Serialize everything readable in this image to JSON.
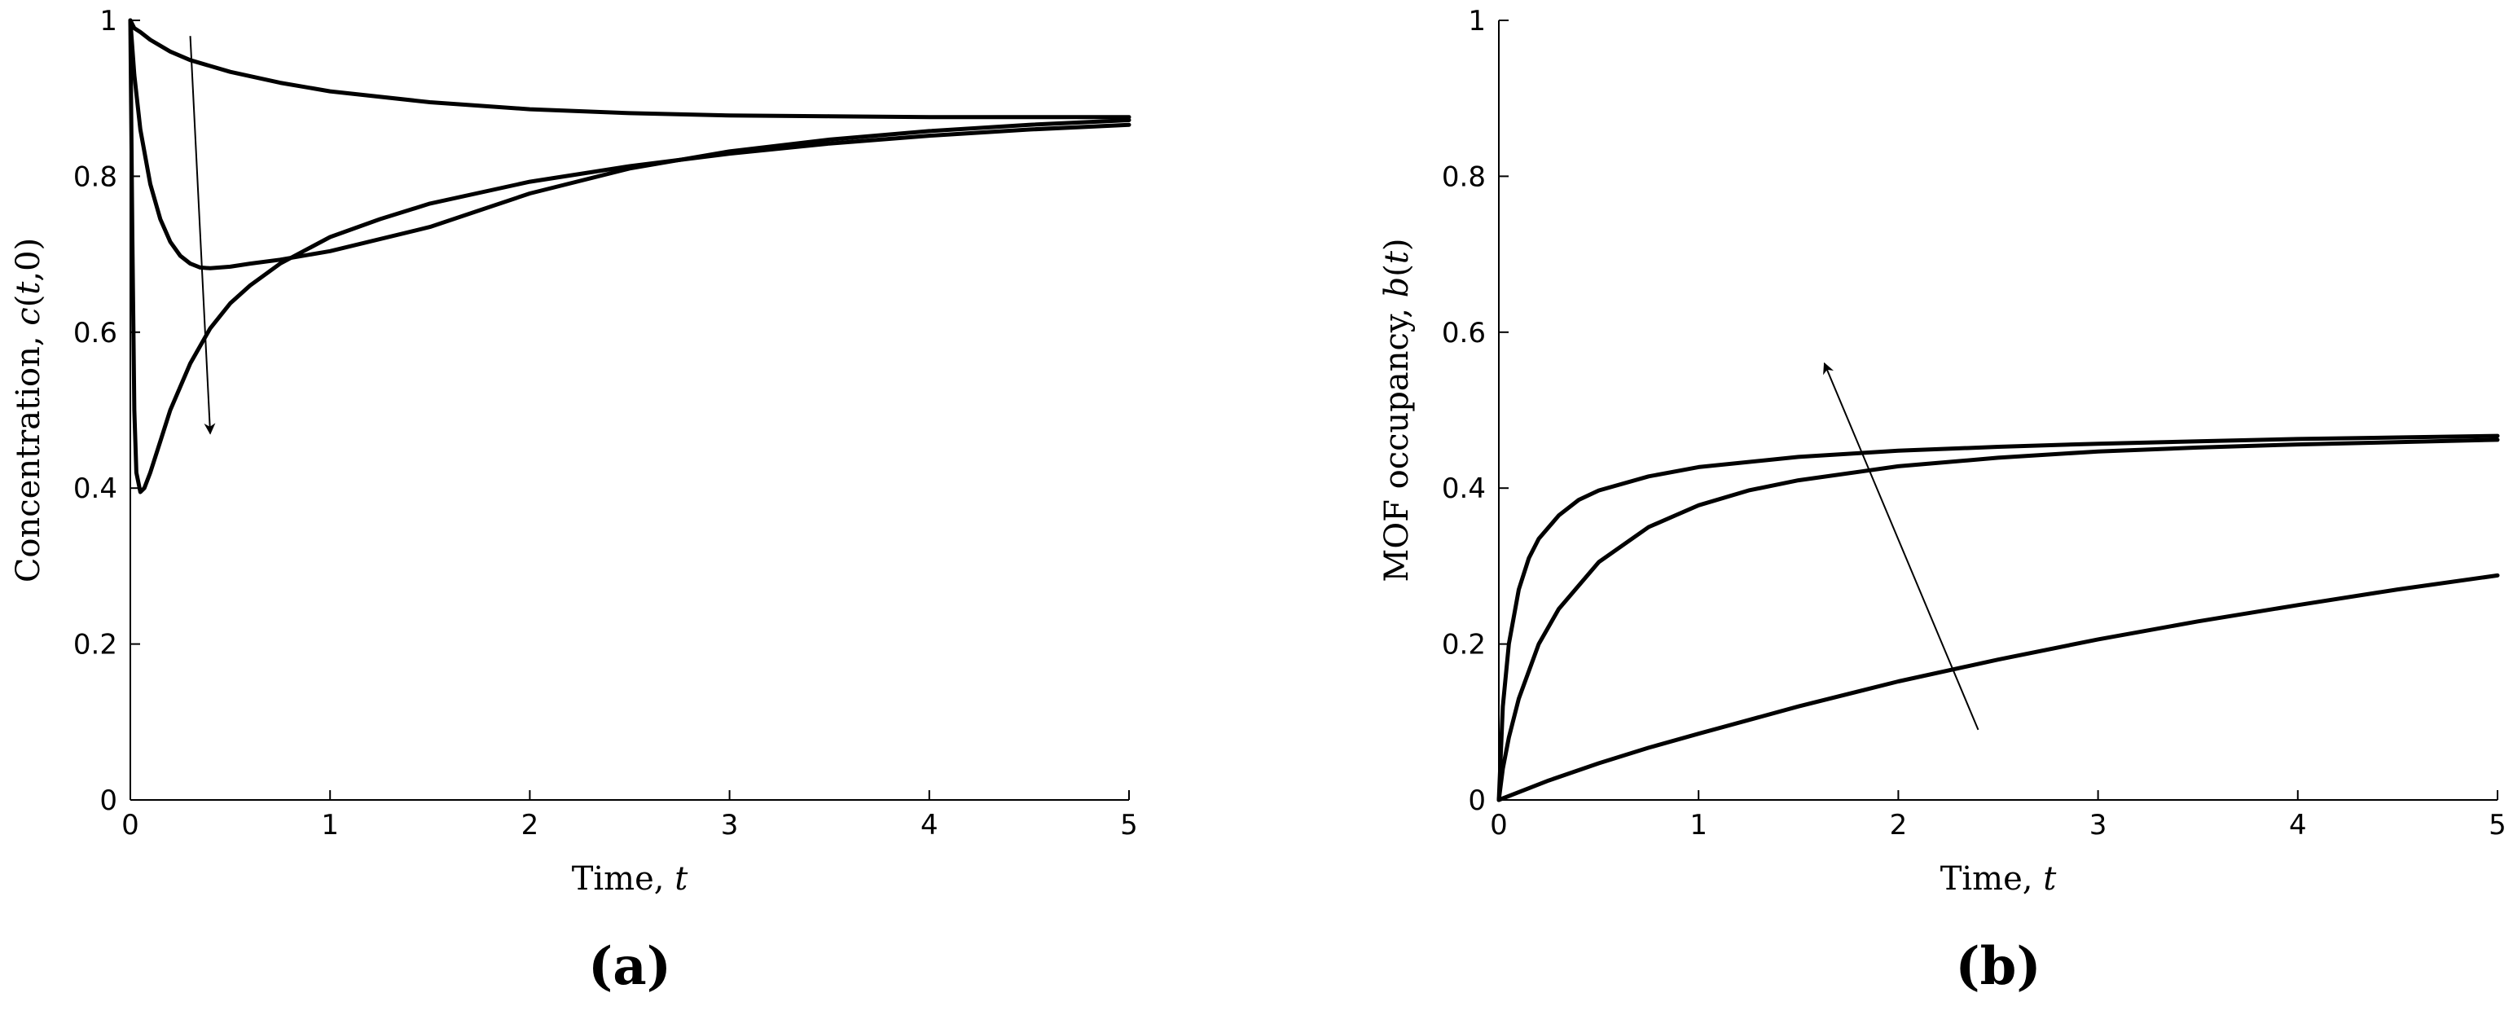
{
  "chart_data": [
    {
      "type": "line",
      "panel_label": "(a)",
      "xlabel": "Time, t",
      "ylabel": "Concentration, c(t,0)",
      "xlim": [
        0,
        5
      ],
      "ylim": [
        0,
        1
      ],
      "xticks": [
        "0",
        "1",
        "2",
        "3",
        "4",
        "5"
      ],
      "yticks": [
        "0",
        "0.2",
        "0.4",
        "0.6",
        "0.8",
        "1"
      ],
      "grid": false,
      "line_color": "#000000",
      "series": [
        {
          "x": [
            0,
            0.02,
            0.05,
            0.1,
            0.2,
            0.3,
            0.5,
            0.75,
            1,
            1.5,
            2,
            2.5,
            3,
            3.5,
            4,
            4.5,
            5
          ],
          "y": [
            1,
            0.99,
            0.985,
            0.975,
            0.96,
            0.949,
            0.934,
            0.92,
            0.909,
            0.895,
            0.886,
            0.881,
            0.878,
            0.877,
            0.876,
            0.876,
            0.876
          ]
        },
        {
          "x": [
            0,
            0.02,
            0.05,
            0.1,
            0.15,
            0.2,
            0.25,
            0.3,
            0.35,
            0.4,
            0.5,
            0.6,
            0.75,
            1,
            1.5,
            2,
            2.5,
            3,
            3.5,
            4,
            4.5,
            5
          ],
          "y": [
            1,
            0.93,
            0.86,
            0.79,
            0.745,
            0.716,
            0.698,
            0.688,
            0.683,
            0.682,
            0.684,
            0.688,
            0.693,
            0.704,
            0.735,
            0.778,
            0.81,
            0.832,
            0.847,
            0.858,
            0.866,
            0.872
          ]
        },
        {
          "x": [
            0,
            0.01,
            0.02,
            0.03,
            0.05,
            0.07,
            0.1,
            0.15,
            0.2,
            0.3,
            0.4,
            0.5,
            0.6,
            0.75,
            1,
            1.25,
            1.5,
            2,
            2.5,
            3,
            3.5,
            4,
            4.5,
            5
          ],
          "y": [
            1,
            0.72,
            0.5,
            0.42,
            0.395,
            0.4,
            0.42,
            0.46,
            0.5,
            0.56,
            0.605,
            0.637,
            0.66,
            0.688,
            0.722,
            0.745,
            0.765,
            0.793,
            0.813,
            0.829,
            0.842,
            0.852,
            0.86,
            0.866
          ]
        }
      ],
      "annotations": [
        {
          "type": "arrow",
          "from": [
            0.3,
            0.98
          ],
          "to": [
            0.4,
            0.47
          ]
        }
      ]
    },
    {
      "type": "line",
      "panel_label": "(b)",
      "xlabel": "Time, t",
      "ylabel": "MOF occupancy, b(t)",
      "xlim": [
        0,
        5
      ],
      "ylim": [
        0,
        1
      ],
      "xticks": [
        "0",
        "1",
        "2",
        "3",
        "4",
        "5"
      ],
      "yticks": [
        "0",
        "0.2",
        "0.4",
        "0.6",
        "0.8",
        "1"
      ],
      "grid": false,
      "line_color": "#000000",
      "series": [
        {
          "x": [
            0,
            0.02,
            0.05,
            0.1,
            0.15,
            0.2,
            0.3,
            0.4,
            0.5,
            0.75,
            1,
            1.5,
            2,
            2.5,
            3,
            3.5,
            4,
            4.5,
            5
          ],
          "y": [
            0,
            0.12,
            0.2,
            0.27,
            0.31,
            0.335,
            0.365,
            0.385,
            0.397,
            0.415,
            0.427,
            0.44,
            0.448,
            0.453,
            0.457,
            0.46,
            0.463,
            0.465,
            0.467
          ]
        },
        {
          "x": [
            0,
            0.02,
            0.05,
            0.1,
            0.2,
            0.3,
            0.5,
            0.75,
            1,
            1.25,
            1.5,
            2,
            2.5,
            3,
            3.5,
            4,
            4.5,
            5
          ],
          "y": [
            0,
            0.04,
            0.08,
            0.13,
            0.2,
            0.245,
            0.305,
            0.35,
            0.378,
            0.397,
            0.41,
            0.428,
            0.439,
            0.447,
            0.452,
            0.456,
            0.459,
            0.462
          ]
        },
        {
          "x": [
            0,
            0.25,
            0.5,
            0.75,
            1,
            1.5,
            2,
            2.5,
            3,
            3.5,
            4,
            4.5,
            5
          ],
          "y": [
            0,
            0.025,
            0.047,
            0.067,
            0.085,
            0.12,
            0.152,
            0.18,
            0.206,
            0.229,
            0.25,
            0.27,
            0.288
          ]
        }
      ],
      "annotations": [
        {
          "type": "arrow",
          "from": [
            2.4,
            0.09
          ],
          "to": [
            1.63,
            0.56
          ]
        }
      ]
    }
  ]
}
